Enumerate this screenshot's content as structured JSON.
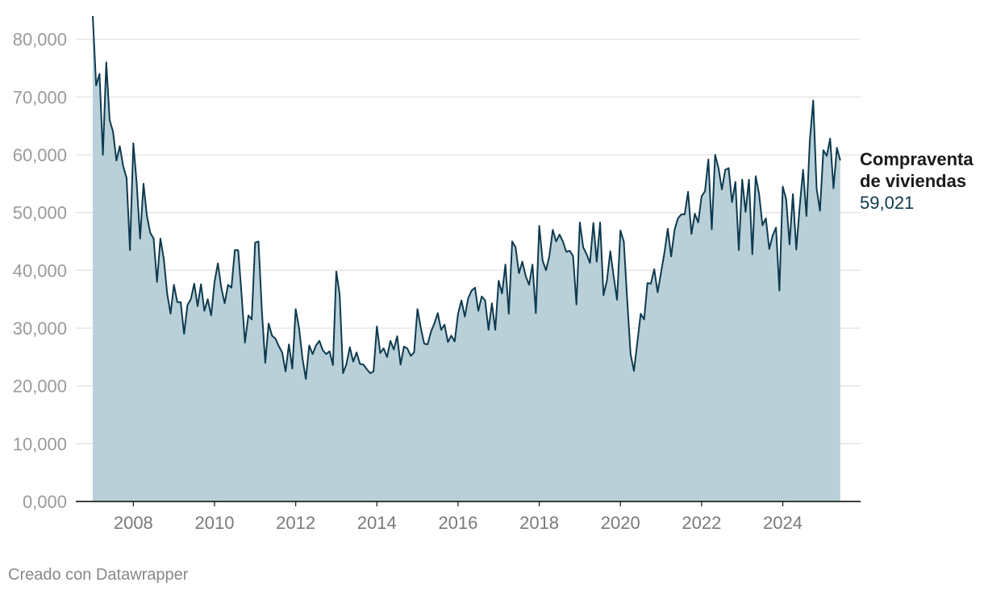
{
  "chart_data": {
    "type": "area",
    "xlim": [
      2007.0,
      2025.5
    ],
    "ylim": [
      0,
      84000
    ],
    "grid": true,
    "y_ticks": [
      {
        "value": 0,
        "label": "0,000"
      },
      {
        "value": 10000,
        "label": "10,000"
      },
      {
        "value": 20000,
        "label": "20,000"
      },
      {
        "value": 30000,
        "label": "30,000"
      },
      {
        "value": 40000,
        "label": "40,000"
      },
      {
        "value": 50000,
        "label": "50,000"
      },
      {
        "value": 60000,
        "label": "60,000"
      },
      {
        "value": 70000,
        "label": "70,000"
      },
      {
        "value": 80000,
        "label": "80,000"
      }
    ],
    "x_ticks": [
      {
        "value": 2008,
        "label": "2008"
      },
      {
        "value": 2010,
        "label": "2010"
      },
      {
        "value": 2012,
        "label": "2012"
      },
      {
        "value": 2014,
        "label": "2014"
      },
      {
        "value": 2016,
        "label": "2016"
      },
      {
        "value": 2018,
        "label": "2018"
      },
      {
        "value": 2020,
        "label": "2020"
      },
      {
        "value": 2022,
        "label": "2022"
      },
      {
        "value": 2024,
        "label": "2024"
      }
    ],
    "colors": {
      "line": "#0e3a4f",
      "area": "#b9d0d9"
    },
    "series": [
      {
        "name": "Compraventa de viviendas",
        "end_label": {
          "name_lines": [
            "Compraventa",
            "de viviendas"
          ],
          "value": "59,021"
        },
        "start_year": 2007,
        "monthly_values": [
          84000,
          72000,
          74000,
          60000,
          76000,
          66000,
          64000,
          59000,
          61500,
          58000,
          56000,
          43500,
          62000,
          55000,
          45500,
          55000,
          49500,
          46500,
          45500,
          38000,
          45500,
          42000,
          36000,
          32500,
          37500,
          34500,
          34500,
          29000,
          34000,
          35000,
          37700,
          33800,
          37600,
          33000,
          35000,
          32200,
          38000,
          41200,
          37000,
          34300,
          37500,
          37000,
          43500,
          43500,
          35800,
          27500,
          32200,
          31500,
          44800,
          45000,
          33000,
          24000,
          30800,
          28700,
          28200,
          26900,
          25800,
          22500,
          27200,
          23000,
          33300,
          30000,
          24800,
          21200,
          27000,
          25500,
          27000,
          27800,
          26200,
          25500,
          26000,
          23600,
          39800,
          35800,
          22200,
          23800,
          26700,
          24200,
          25800,
          23800,
          23700,
          22900,
          22200,
          22500,
          30300,
          25700,
          26500,
          25000,
          27800,
          26300,
          28600,
          23700,
          26800,
          26500,
          25200,
          25800,
          33300,
          30000,
          27300,
          27200,
          29400,
          30800,
          32600,
          29700,
          30600,
          27600,
          28700,
          27700,
          32500,
          34800,
          32000,
          35200,
          36500,
          37000,
          33000,
          35500,
          34800,
          29700,
          34300,
          29700,
          38200,
          36000,
          41000,
          32500,
          45000,
          44000,
          39500,
          41500,
          39000,
          37500,
          41000,
          32600,
          47700,
          41700,
          40000,
          42500,
          47000,
          45000,
          46200,
          45000,
          43200,
          43400,
          42500,
          34100,
          48300,
          44000,
          42800,
          41300,
          48200,
          41500,
          48300,
          35700,
          38200,
          43300,
          39000,
          34900,
          46900,
          45000,
          35000,
          25500,
          22600,
          27500,
          32500,
          31500,
          37800,
          37700,
          40200,
          36200,
          39600,
          43000,
          47200,
          42400,
          47000,
          49000,
          49700,
          49700,
          53600,
          46300,
          49800,
          48300,
          52800,
          53700,
          59200,
          47100,
          60000,
          57700,
          54000,
          57400,
          57700,
          51800,
          55300,
          43500,
          55700,
          50100,
          55700,
          42800,
          56300,
          53200,
          47800,
          49000,
          43700,
          46000,
          47400,
          36500,
          54500,
          52300,
          44500,
          53200,
          43600,
          51000,
          57400,
          49400,
          62500,
          69400,
          54200,
          50300,
          60800,
          59800,
          62800,
          54200,
          61200,
          59021
        ]
      }
    ]
  },
  "credit": "Creado con Datawrapper"
}
